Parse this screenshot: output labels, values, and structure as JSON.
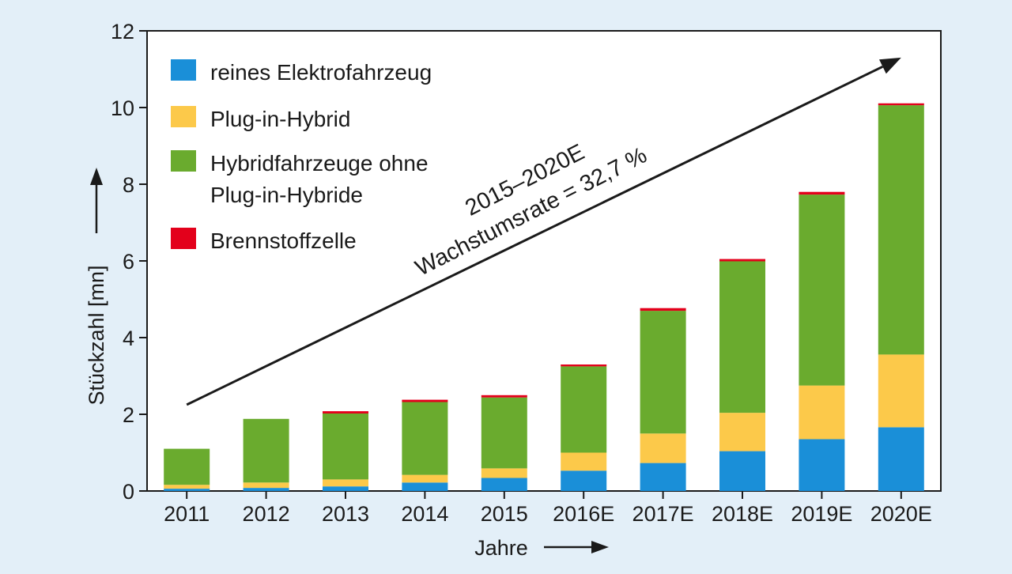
{
  "chart_data": {
    "type": "bar",
    "stacked": true,
    "categories": [
      "2011",
      "2012",
      "2013",
      "2014",
      "2015",
      "2016E",
      "2017E",
      "2018E",
      "2019E",
      "2020E"
    ],
    "series": [
      {
        "name": "reines Elektrofahrzeug",
        "color": "#1a8fd8",
        "values": [
          0.06,
          0.08,
          0.12,
          0.22,
          0.34,
          0.53,
          0.73,
          1.04,
          1.35,
          1.66
        ]
      },
      {
        "name": "Plug-in-Hybrid",
        "color": "#fcc94a",
        "values": [
          0.1,
          0.14,
          0.18,
          0.2,
          0.25,
          0.47,
          0.77,
          1.0,
          1.4,
          1.9
        ]
      },
      {
        "name": "Hybridfahrzeuge ohne Plug-in-Hybride",
        "color": "#6aab2e",
        "values": [
          0.94,
          1.66,
          1.72,
          1.9,
          1.85,
          2.25,
          3.2,
          3.95,
          4.98,
          6.5
        ]
      },
      {
        "name": "Brennstoffzelle",
        "color": "#e3001b",
        "values": [
          0.0,
          0.0,
          0.06,
          0.06,
          0.06,
          0.05,
          0.07,
          0.06,
          0.07,
          0.05
        ]
      }
    ],
    "legend": [
      "reines Elektrofahrzeug",
      "Plug-in-Hybrid",
      [
        "Hybridfahrzeuge ohne",
        "Plug-in-Hybride"
      ],
      "Brennstoffzelle"
    ],
    "legend_position": "top-left",
    "xlabel": "Jahre",
    "ylabel": "Stückzahl [mn]",
    "ylim": [
      0,
      12
    ],
    "yticks": [
      0,
      2,
      4,
      6,
      8,
      10,
      12
    ],
    "grid": false,
    "annotation": {
      "line1": "2015–2020E",
      "line2": "Wachstumsrate = 32,7 %",
      "arrow_from": [
        "2011",
        2.25
      ],
      "arrow_to": [
        "2020E",
        11.3
      ]
    }
  }
}
